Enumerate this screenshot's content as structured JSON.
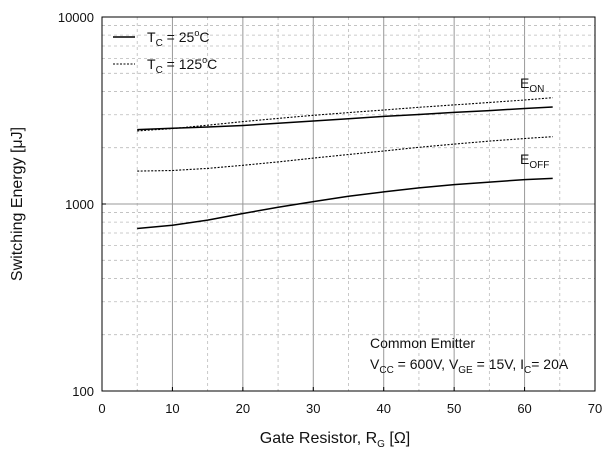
{
  "chart_data": {
    "type": "line",
    "title": "",
    "xlabel": {
      "main": "Gate Resistor, R",
      "sub": "G",
      "unit": " [Ω]"
    },
    "ylabel": "Switching Energy [μJ]",
    "xlim": [
      0,
      70
    ],
    "ylim": [
      100,
      10000
    ],
    "yscale": "log",
    "grid": true,
    "x_ticks": [
      "0",
      "10",
      "20",
      "30",
      "40",
      "50",
      "60",
      "70"
    ],
    "y_ticks": [
      "100",
      "1000",
      "10000"
    ],
    "legend": {
      "placement": "top-left",
      "entries": [
        {
          "prefix": "T",
          "sub": "C",
          "mid": " = 25",
          "sup": "o",
          "suffix": "C",
          "style": "solid"
        },
        {
          "prefix": "T",
          "sub": "C",
          "mid": " = 125",
          "sup": "o",
          "suffix": "C",
          "style": "dotted"
        }
      ]
    },
    "series_labels": [
      {
        "main": "E",
        "sub": "ON"
      },
      {
        "main": "E",
        "sub": "OFF"
      }
    ],
    "series": [
      {
        "curve": "EON",
        "temperature": "25C",
        "style": "solid",
        "x": [
          5,
          10,
          15,
          20,
          25,
          30,
          35,
          40,
          45,
          50,
          55,
          60,
          64
        ],
        "values": [
          2500,
          2540,
          2580,
          2630,
          2700,
          2780,
          2860,
          2940,
          3010,
          3090,
          3160,
          3240,
          3300
        ]
      },
      {
        "curve": "EON",
        "temperature": "125C",
        "style": "dotted",
        "x": [
          5,
          10,
          15,
          20,
          25,
          30,
          35,
          40,
          45,
          50,
          55,
          60,
          64
        ],
        "values": [
          2460,
          2530,
          2640,
          2760,
          2870,
          2980,
          3080,
          3180,
          3290,
          3390,
          3490,
          3600,
          3700
        ]
      },
      {
        "curve": "EOFF",
        "temperature": "125C",
        "style": "dotted",
        "x": [
          5,
          10,
          15,
          20,
          25,
          30,
          35,
          40,
          45,
          50,
          55,
          60,
          64
        ],
        "values": [
          1500,
          1510,
          1550,
          1610,
          1680,
          1760,
          1840,
          1920,
          2010,
          2090,
          2170,
          2240,
          2290
        ]
      },
      {
        "curve": "EOFF",
        "temperature": "25C",
        "style": "solid",
        "x": [
          5,
          10,
          15,
          20,
          25,
          30,
          35,
          40,
          45,
          50,
          55,
          60,
          64
        ],
        "values": [
          740,
          770,
          820,
          890,
          960,
          1030,
          1100,
          1160,
          1220,
          1270,
          1310,
          1350,
          1370
        ]
      }
    ],
    "annotation": {
      "line1": "Common Emitter",
      "line2": [
        {
          "t": "V"
        },
        {
          "t": "CC",
          "sub": true
        },
        {
          "t": " = 600V, V"
        },
        {
          "t": "GE",
          "sub": true
        },
        {
          "t": " = 15V, I"
        },
        {
          "t": "C",
          "sub": true
        },
        {
          "t": "= 20A"
        }
      ]
    }
  }
}
